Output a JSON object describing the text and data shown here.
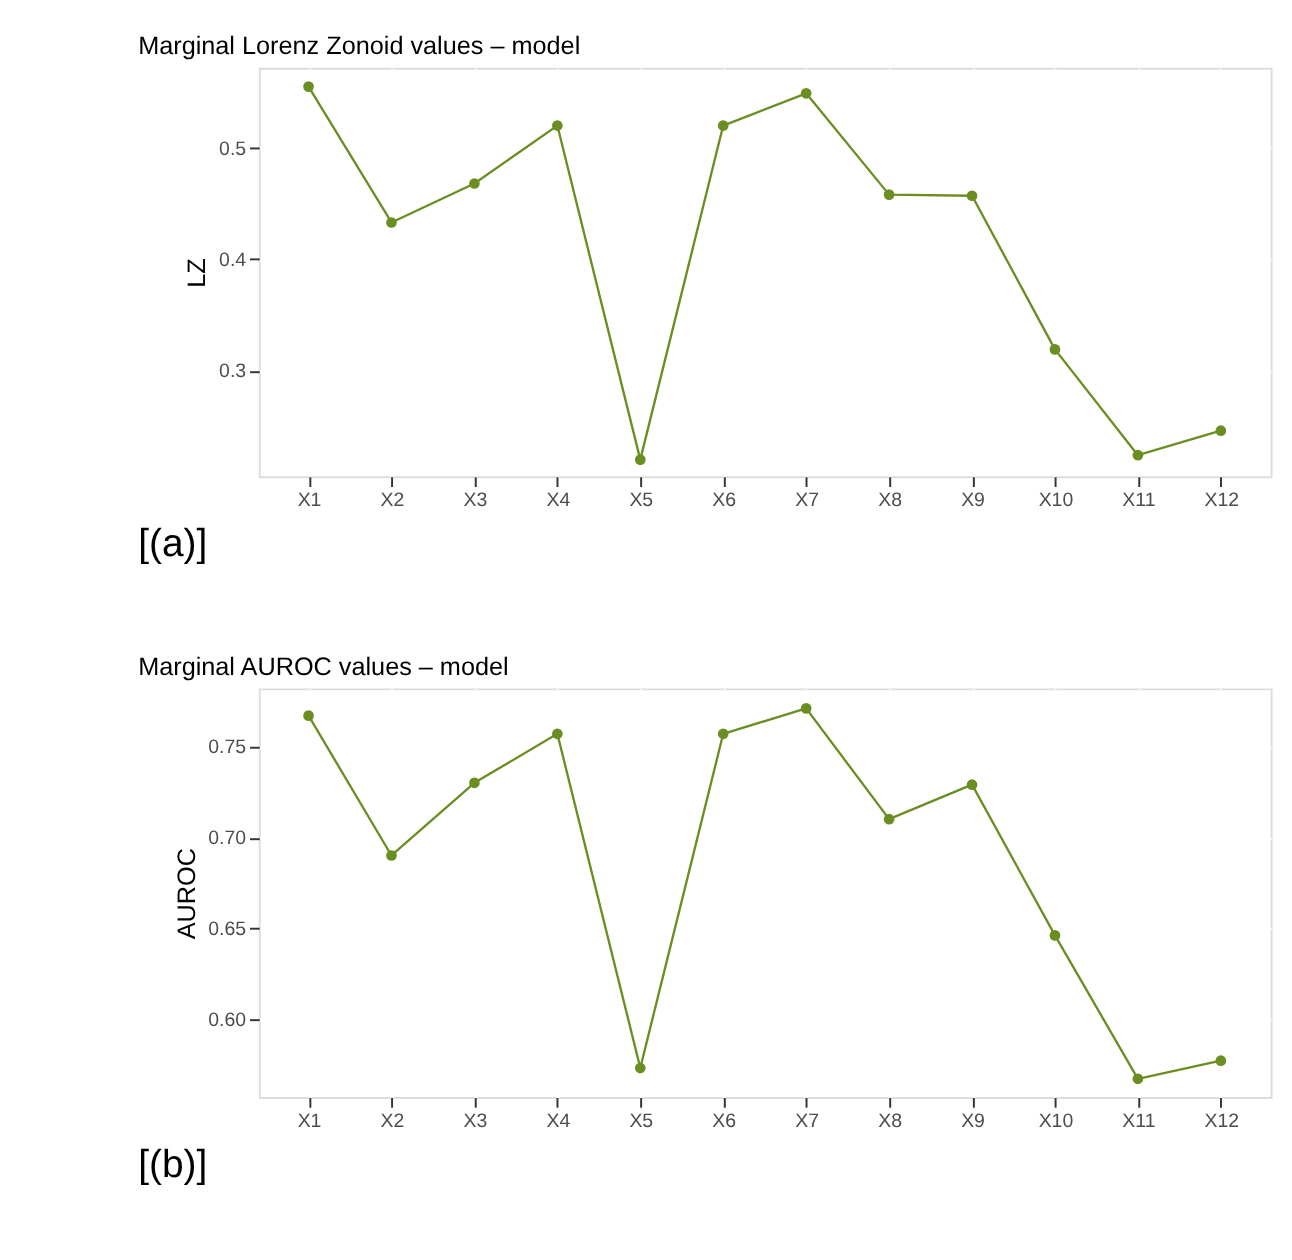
{
  "chart_data": [
    {
      "type": "line",
      "title": "Marginal Lorenz Zonoid values – model",
      "ylabel": "LZ",
      "categories": [
        "X1",
        "X2",
        "X3",
        "X4",
        "X5",
        "X6",
        "X7",
        "X8",
        "X9",
        "X10",
        "X11",
        "X12"
      ],
      "series": [
        {
          "color": "#6b8e23",
          "values": [
            0.555,
            0.433,
            0.468,
            0.52,
            0.22,
            0.52,
            0.549,
            0.458,
            0.457,
            0.319,
            0.224,
            0.246
          ]
        }
      ],
      "ylim": [
        0.205,
        0.572
      ],
      "yticks": [
        0.3,
        0.4,
        0.5
      ],
      "grid": true,
      "marker": "circle",
      "line_style": "solid",
      "annotations": [
        "[(a)]"
      ]
    },
    {
      "type": "line",
      "title": "Marginal AUROC values – model",
      "ylabel": "AUROC",
      "categories": [
        "X1",
        "X2",
        "X3",
        "X4",
        "X5",
        "X6",
        "X7",
        "X8",
        "X9",
        "X10",
        "X11",
        "X12"
      ],
      "series": [
        {
          "color": "#6b8e23",
          "values": [
            0.767,
            0.69,
            0.73,
            0.757,
            0.573,
            0.757,
            0.771,
            0.71,
            0.729,
            0.646,
            0.567,
            0.577
          ]
        }
      ],
      "ylim": [
        0.557,
        0.782
      ],
      "yticks": [
        {
          "value": 0.6,
          "label": "0.60"
        },
        0.65,
        {
          "value": 0.7,
          "label": "0.70"
        },
        0.75
      ],
      "grid": true,
      "marker": "circle",
      "line_style": "solid",
      "annotations": [
        "[(b)]"
      ]
    }
  ]
}
